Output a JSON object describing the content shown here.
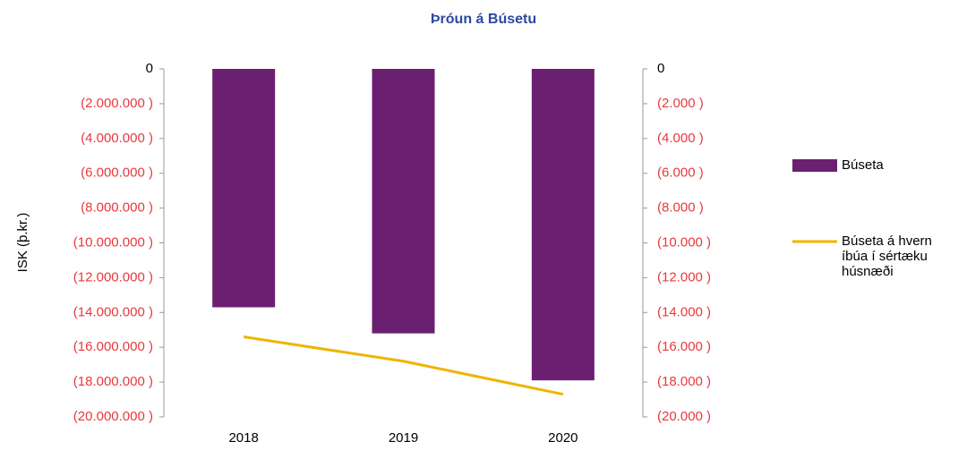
{
  "chart_data": {
    "type": "bar",
    "title": "Þróun á Búsetu",
    "ylabel": "ISK (þ.kr.)",
    "categories": [
      "2018",
      "2019",
      "2020"
    ],
    "series": [
      {
        "name": "Búseta",
        "color": "#6b1f70",
        "values": [
          -13700000,
          -15200000,
          -17900000
        ]
      },
      {
        "name": "Búseta á hvern íbúa í sértæku húsnæði",
        "type": "line",
        "axis": "y2",
        "color": "#f0b400",
        "values": [
          -15400,
          -16800,
          -18700
        ]
      }
    ],
    "ylim": [
      -20000000,
      0
    ],
    "yticks": [
      0,
      {
        "value": -2000000,
        "label": "(2.000.000 )"
      },
      {
        "value": -4000000,
        "label": "(4.000.000 )"
      },
      {
        "value": -6000000,
        "label": "(6.000.000 )"
      },
      {
        "value": -8000000,
        "label": "(8.000.000 )"
      },
      {
        "value": -10000000,
        "label": "(10.000.000 )"
      },
      {
        "value": -12000000,
        "label": "(12.000.000 )"
      },
      {
        "value": -14000000,
        "label": "(14.000.000 )"
      },
      {
        "value": -16000000,
        "label": "(16.000.000 )"
      },
      {
        "value": -18000000,
        "label": "(18.000.000 )"
      },
      {
        "value": -20000000,
        "label": "(20.000.000 )"
      }
    ],
    "y2lim": [
      -20000,
      0
    ],
    "y2ticks": [
      0,
      {
        "value": -2000,
        "label": "(2.000 )"
      },
      {
        "value": -4000,
        "label": "(4.000 )"
      },
      {
        "value": -6000,
        "label": "(6.000 )"
      },
      {
        "value": -8000,
        "label": "(8.000 )"
      },
      {
        "value": -10000,
        "label": "(10.000 )"
      },
      {
        "value": -12000,
        "label": "(12.000 )"
      },
      {
        "value": -14000,
        "label": "(14.000 )"
      },
      {
        "value": -16000,
        "label": "(16.000 )"
      },
      {
        "value": -18000,
        "label": "(18.000 )"
      },
      {
        "value": -20000,
        "label": "(20.000 )"
      }
    ],
    "legend": "right"
  }
}
